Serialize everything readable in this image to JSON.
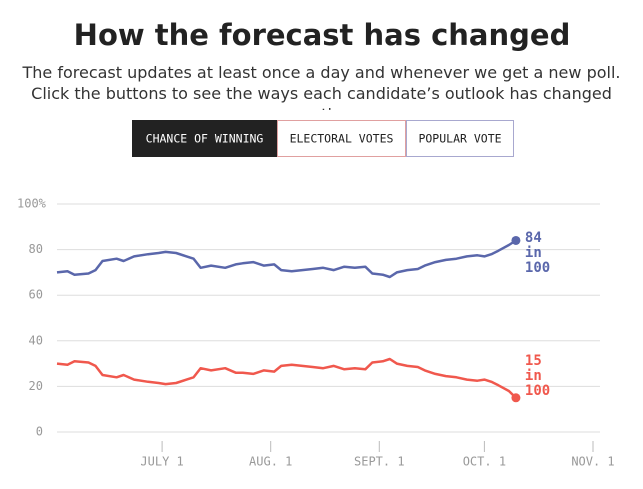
{
  "header": {
    "title": "How the forecast has changed",
    "subtitle": "The forecast updates at least once a day and whenever we get a new poll. Click the buttons to see the ways each candidate’s outlook has changed over time."
  },
  "buttons": [
    "CHANCE OF WINNING",
    "ELECTORAL VOTES",
    "POPULAR VOTE"
  ],
  "chart_data": {
    "type": "line",
    "x": [
      "06-01",
      "06-04",
      "06-06",
      "06-10",
      "06-12",
      "06-14",
      "06-18",
      "06-20",
      "06-23",
      "06-27",
      "06-30",
      "07-02",
      "07-05",
      "07-08",
      "07-10",
      "07-12",
      "07-15",
      "07-19",
      "07-22",
      "07-24",
      "07-27",
      "07-30",
      "08-02",
      "08-04",
      "08-07",
      "08-10",
      "08-13",
      "08-16",
      "08-19",
      "08-22",
      "08-25",
      "08-28",
      "08-30",
      "09-02",
      "09-04",
      "09-06",
      "09-09",
      "09-12",
      "09-14",
      "09-17",
      "09-20",
      "09-23",
      "09-26",
      "09-29",
      "10-01",
      "10-03",
      "10-05",
      "10-08",
      "10-10"
    ],
    "series": [
      {
        "color": "#5a67ab",
        "values": [
          70,
          70.5,
          69,
          69.5,
          71,
          75,
          76,
          75,
          77,
          78,
          78.5,
          79,
          78.5,
          77,
          76,
          72,
          73,
          72,
          73.5,
          74,
          74.5,
          73,
          73.5,
          71,
          70.5,
          71,
          71.5,
          72,
          71,
          72.5,
          72,
          72.5,
          69.5,
          69,
          68,
          70,
          71,
          71.5,
          73,
          74.5,
          75.5,
          76,
          77,
          77.5,
          77,
          78,
          79.5,
          82,
          84
        ],
        "value_labels": [
          null,
          null,
          null,
          null,
          null,
          null,
          null,
          null,
          null,
          null,
          null,
          null,
          null,
          null,
          null,
          null,
          null,
          null,
          null,
          null,
          null,
          null,
          null,
          null,
          null,
          null,
          null,
          null,
          null,
          null,
          null,
          null,
          null,
          null,
          null,
          null,
          null,
          null,
          null,
          null,
          null,
          null,
          null,
          null,
          null,
          null,
          null,
          null,
          "84 in 100"
        ]
      },
      {
        "color": "#f0584d",
        "values": [
          30,
          29.5,
          31,
          30.5,
          29,
          25,
          24,
          25,
          23,
          22,
          21.5,
          21,
          21.5,
          23,
          24,
          28,
          27,
          28,
          26,
          26,
          25.5,
          27,
          26.5,
          29,
          29.5,
          29,
          28.5,
          28,
          29,
          27.5,
          28,
          27.5,
          30.5,
          31,
          32,
          30,
          29,
          28.5,
          27,
          25.5,
          24.5,
          24,
          23,
          22.5,
          23,
          22,
          20.5,
          18,
          15
        ],
        "value_labels": [
          null,
          null,
          null,
          null,
          null,
          null,
          null,
          null,
          null,
          null,
          null,
          null,
          null,
          null,
          null,
          null,
          null,
          null,
          null,
          null,
          null,
          null,
          null,
          null,
          null,
          null,
          null,
          null,
          null,
          null,
          null,
          null,
          null,
          null,
          null,
          null,
          null,
          null,
          null,
          null,
          null,
          null,
          null,
          null,
          null,
          null,
          null,
          null,
          "15 in 100"
        ]
      }
    ],
    "xlim": [
      "06-01",
      "11-03"
    ],
    "xticks": [
      {
        "value": "07-01",
        "label": "JULY 1"
      },
      {
        "value": "08-01",
        "label": "AUG. 1"
      },
      {
        "value": "09-01",
        "label": "SEPT. 1"
      },
      {
        "value": "10-01",
        "label": "OCT. 1"
      },
      {
        "value": "11-01",
        "label": "NOV. 1"
      }
    ],
    "ylim": [
      0,
      100
    ],
    "yticks": [
      0,
      20,
      40,
      60,
      80,
      {
        "value": 100,
        "label": "100%"
      }
    ],
    "grid": true
  }
}
